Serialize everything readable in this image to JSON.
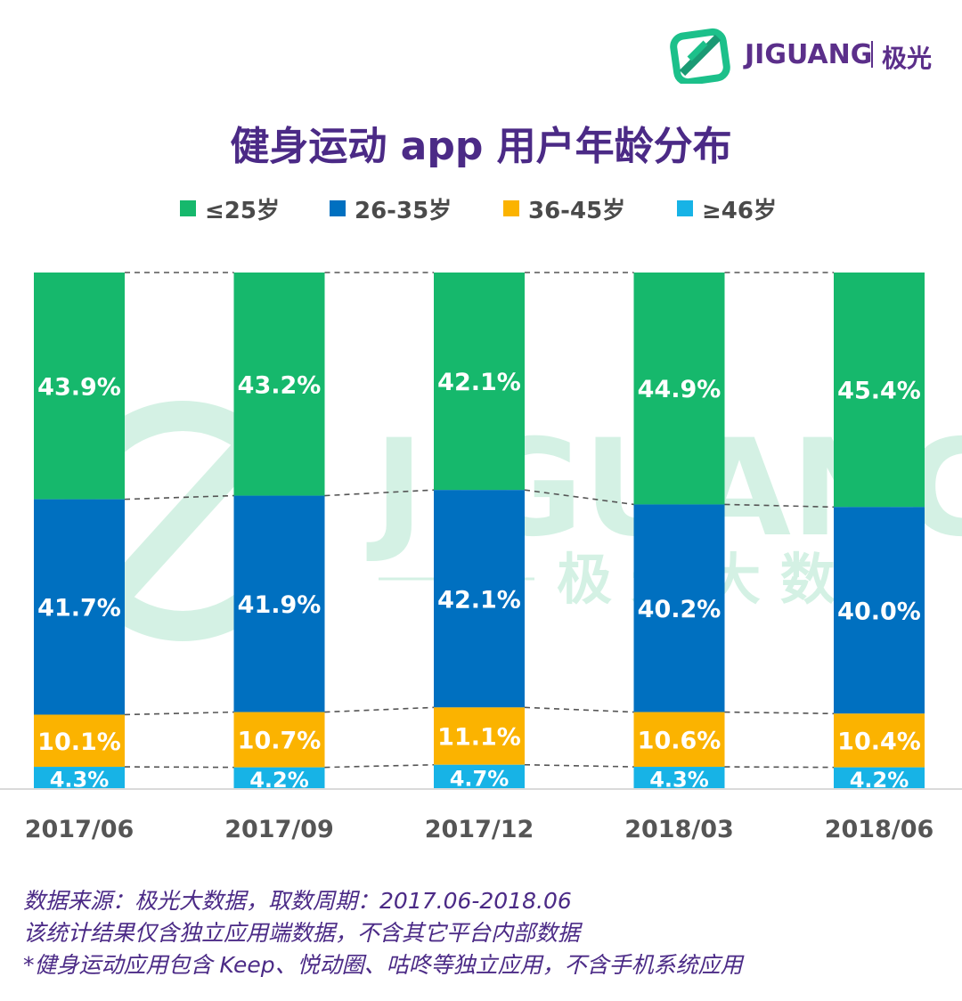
{
  "logo": {
    "text": "JIGUANG",
    "cn": "极光"
  },
  "title": "健身运动 app 用户年龄分布",
  "colors": {
    "s1": "#16b86c",
    "s2": "#0070c0",
    "s3": "#fbb300",
    "s4": "#17b3e6",
    "title": "#4b2a86"
  },
  "watermark": {
    "text": "JIGUANG",
    "cn": "极 光 大 数 据"
  },
  "chart_data": {
    "type": "bar",
    "stacked": true,
    "normalized": true,
    "categories": [
      "2017/06",
      "2017/09",
      "2017/12",
      "2018/03",
      "2018/06"
    ],
    "series": [
      {
        "name": "≤25岁",
        "values": [
          43.9,
          43.2,
          42.1,
          44.9,
          45.4
        ],
        "labels": [
          "43.9%",
          "43.2%",
          "42.1%",
          "44.9%",
          "45.4%"
        ]
      },
      {
        "name": "26-35岁",
        "values": [
          41.7,
          41.9,
          42.1,
          40.2,
          40.0
        ],
        "labels": [
          "41.7%",
          "41.9%",
          "42.1%",
          "40.2%",
          "40.0%"
        ]
      },
      {
        "name": "36-45岁",
        "values": [
          10.1,
          10.7,
          11.1,
          10.6,
          10.4
        ],
        "labels": [
          "10.1%",
          "10.7%",
          "11.1%",
          "10.6%",
          "10.4%"
        ]
      },
      {
        "name": "≥46岁",
        "values": [
          4.3,
          4.2,
          4.7,
          4.3,
          4.2
        ],
        "labels": [
          "4.3%",
          "4.2%",
          "4.7%",
          "4.3%",
          "4.2%"
        ]
      }
    ],
    "legend": "top",
    "grid": false
  },
  "footnotes": [
    "数据来源：极光大数据，取数周期：2017.06-2018.06",
    "该统计结果仅含独立应用端数据，不含其它平台内部数据",
    " *健身运动应用包含 Keep、悦动圈、咕咚等独立应用，不含手机系统应用"
  ]
}
